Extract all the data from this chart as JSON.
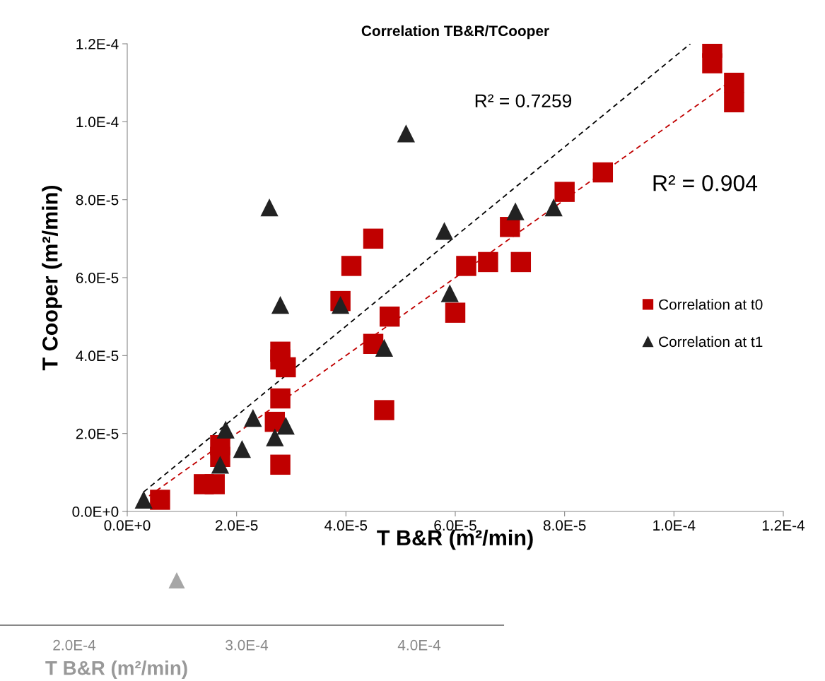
{
  "chart_data": {
    "type": "scatter",
    "title": "Correlation TB&R/TCooper",
    "xlabel": "T B&R (m²/min)",
    "ylabel": "T Cooper (m²/min)",
    "xlim": [
      0,
      0.00012
    ],
    "ylim": [
      0,
      0.00012
    ],
    "xticks": [
      {
        "value": 0,
        "label": "0.0E+0"
      },
      {
        "value": 2e-05,
        "label": "2.0E-5"
      },
      {
        "value": 4e-05,
        "label": "4.0E-5"
      },
      {
        "value": 6e-05,
        "label": "6.0E-5"
      },
      {
        "value": 8e-05,
        "label": "8.0E-5"
      },
      {
        "value": 0.0001,
        "label": "1.0E-4"
      },
      {
        "value": 0.00012,
        "label": "1.2E-4"
      }
    ],
    "yticks": [
      {
        "value": 0,
        "label": "0.0E+0"
      },
      {
        "value": 2e-05,
        "label": "2.0E-5"
      },
      {
        "value": 4e-05,
        "label": "4.0E-5"
      },
      {
        "value": 6e-05,
        "label": "6.0E-5"
      },
      {
        "value": 8e-05,
        "label": "8.0E-5"
      },
      {
        "value": 0.0001,
        "label": "1.0E-4"
      },
      {
        "value": 0.00012,
        "label": "1.2E-4"
      }
    ],
    "grid": false,
    "legend": "right",
    "series": [
      {
        "name": "Correlation at t0",
        "color": "#c00000",
        "marker": "square",
        "x": [
          6e-06,
          1.4e-05,
          1.6e-05,
          1.7e-05,
          1.7e-05,
          2.8e-05,
          2.8e-05,
          2.9e-05,
          2.8e-05,
          2.7e-05,
          2.8e-05,
          4.5e-05,
          4.1e-05,
          3.9e-05,
          4.8e-05,
          4.5e-05,
          4.7e-05,
          6.2e-05,
          6.6e-05,
          7.2e-05,
          7e-05,
          6e-05,
          8e-05,
          8.7e-05,
          0.000107,
          0.000107,
          0.000111,
          0.000111
        ],
        "values": [
          3e-06,
          7e-06,
          7e-06,
          1.7e-05,
          1.4e-05,
          4.1e-05,
          3.9e-05,
          3.7e-05,
          2.9e-05,
          2.3e-05,
          1.2e-05,
          7e-05,
          6.3e-05,
          5.4e-05,
          5e-05,
          4.3e-05,
          2.6e-05,
          6.3e-05,
          6.4e-05,
          6.4e-05,
          7.3e-05,
          5.1e-05,
          8.2e-05,
          8.7e-05,
          0.000119,
          0.000115,
          0.00011,
          0.000105
        ]
      },
      {
        "name": "Correlation at t1",
        "color": "#222222",
        "marker": "triangle",
        "x": [
          3e-06,
          1.7e-05,
          1.8e-05,
          2.1e-05,
          2.3e-05,
          2.7e-05,
          2.9e-05,
          2.8e-05,
          2.6e-05,
          5.1e-05,
          3.9e-05,
          4.7e-05,
          5.8e-05,
          5.9e-05,
          7.1e-05,
          7.8e-05
        ],
        "values": [
          3e-06,
          1.2e-05,
          2.1e-05,
          1.6e-05,
          2.4e-05,
          1.9e-05,
          2.2e-05,
          5.3e-05,
          7.8e-05,
          9.7e-05,
          5.3e-05,
          4.2e-05,
          7.2e-05,
          5.6e-05,
          7.7e-05,
          7.8e-05
        ]
      },
      {
        "type": "line",
        "color": "#000000",
        "line_style": "dashed",
        "x": [
          3e-06,
          0.000103
        ],
        "values": [
          5e-06,
          0.00012
        ]
      },
      {
        "type": "line",
        "color": "#c00000",
        "line_style": "dashed",
        "x": [
          4e-06,
          0.00011
        ],
        "values": [
          4e-06,
          0.00011
        ]
      }
    ],
    "annotations": [
      "R² = 0.7259",
      "R² = 0.904",
      "2.0E-4",
      "3.0E-4",
      "4.0E-4",
      "T B&R (m²/min)"
    ]
  }
}
